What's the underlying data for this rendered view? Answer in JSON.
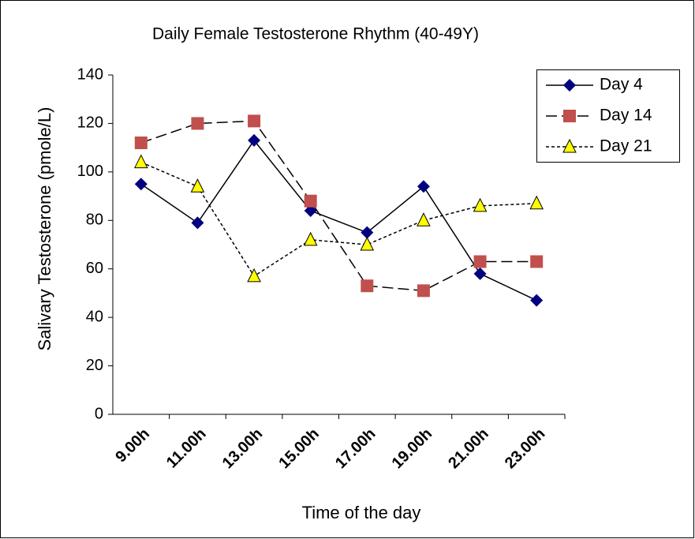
{
  "chart_data": {
    "type": "line",
    "title": "Daily Female Testosterone Rhythm (40-49Y)",
    "x_label": "Time of the day",
    "y_label": "Salivary Testosterone (pmole/L)",
    "categories": [
      "9.00h",
      "11.00h",
      "13.00h",
      "15.00h",
      "17.00h",
      "19.00h",
      "21.00h",
      "23.00h"
    ],
    "series": [
      {
        "name": "Day 4",
        "color": "#000080",
        "marker": "diamond",
        "line_style": "solid",
        "values": [
          95,
          79,
          113,
          84,
          75,
          94,
          58,
          47
        ]
      },
      {
        "name": "Day 14",
        "color": "#c0504d",
        "marker": "square",
        "line_style": "dashed",
        "values": [
          112,
          120,
          121,
          88,
          53,
          51,
          63,
          63
        ]
      },
      {
        "name": "Day 21",
        "color": "#ffff00",
        "marker": "triangle",
        "line_style": "dotted",
        "values": [
          104,
          94,
          57,
          72,
          70,
          80,
          86,
          87
        ]
      }
    ],
    "ylim": [
      0,
      140
    ],
    "yticks": [
      0,
      20,
      40,
      60,
      80,
      100,
      120,
      140
    ],
    "grid": false,
    "legend": "upper right"
  }
}
